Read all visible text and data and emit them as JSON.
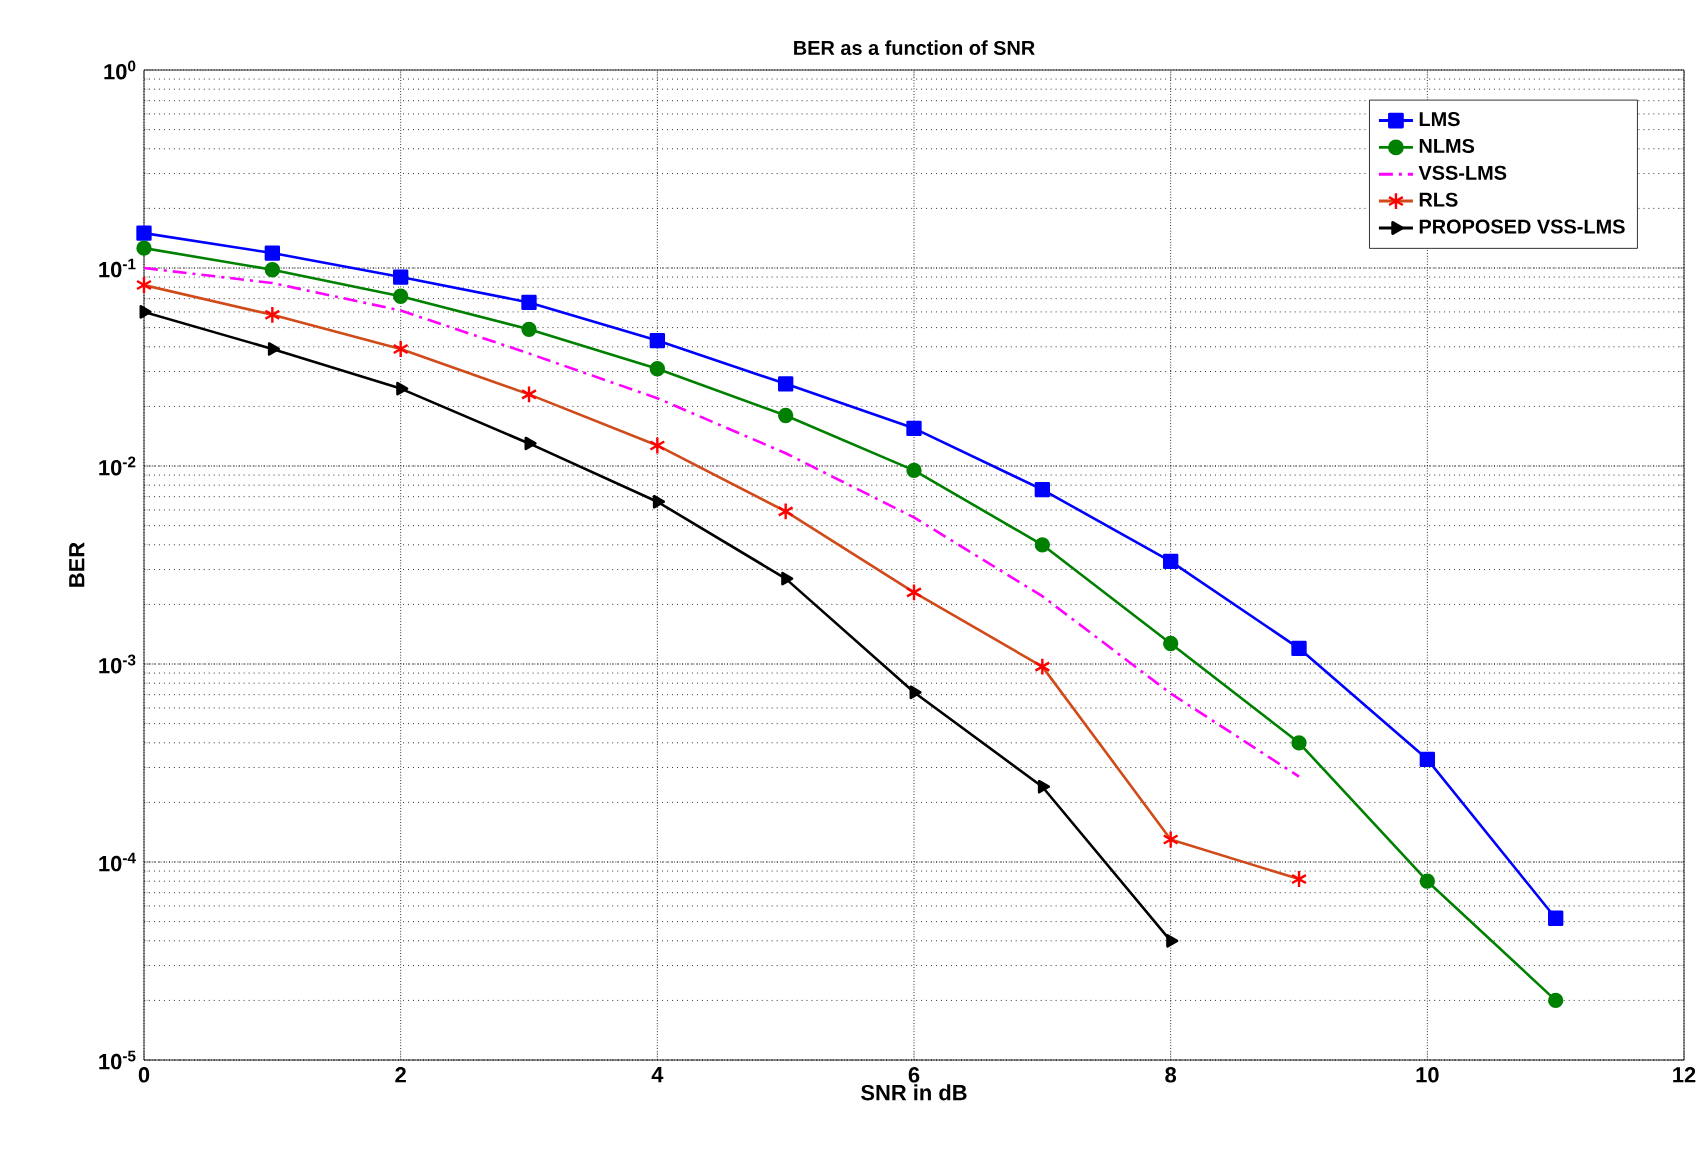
{
  "chart_data": {
    "type": "line",
    "title": "BER as a function of SNR",
    "xlabel": "SNR in dB",
    "ylabel": "BER",
    "x": [
      0,
      1,
      2,
      3,
      4,
      5,
      6,
      7,
      8,
      9,
      10,
      11
    ],
    "series": [
      {
        "name": "LMS",
        "color": "#0000ff",
        "marker": "square",
        "values": [
          0.15,
          0.119,
          0.09,
          0.067,
          0.043,
          0.026,
          0.0155,
          0.0076,
          0.0033,
          0.0012,
          0.00033,
          5.2e-05
        ]
      },
      {
        "name": "NLMS",
        "color": "#008000",
        "marker": "circle",
        "values": [
          0.126,
          0.098,
          0.072,
          0.049,
          0.031,
          0.018,
          0.0095,
          0.004,
          0.00127,
          0.0004,
          8e-05,
          2e-05
        ]
      },
      {
        "name": "VSS-LMS",
        "color": "#ff00ff",
        "marker": "none",
        "line_style": "dashdot",
        "values": [
          0.1,
          0.084,
          0.061,
          0.037,
          0.022,
          0.0116,
          0.0055,
          0.0022,
          0.00071,
          0.00027,
          null,
          null
        ]
      },
      {
        "name": "RLS",
        "color": "#d04a1a",
        "marker": "cross",
        "values": [
          0.082,
          0.058,
          0.039,
          0.023,
          0.0127,
          0.0059,
          0.0023,
          0.00097,
          0.00013,
          8.2e-05,
          null,
          null
        ]
      },
      {
        "name": "PROPOSED VSS-LMS",
        "color": "#000000",
        "marker": "triangle",
        "values": [
          0.06,
          0.039,
          0.0246,
          0.013,
          0.0066,
          0.0027,
          0.00072,
          0.00024,
          4e-05,
          null,
          null,
          null
        ]
      }
    ],
    "log": "y",
    "xlim": [
      0,
      12
    ],
    "ylim": [
      1e-05,
      1
    ],
    "xticks": [
      0,
      2,
      4,
      6,
      8,
      10,
      12
    ],
    "yticks": [
      {
        "value": 1e-05,
        "label": "10$^{-5}$"
      },
      {
        "value": 0.0001,
        "label": "10$^{-4}$"
      },
      {
        "value": 0.001,
        "label": "10$^{-3}$"
      },
      {
        "value": 0.01,
        "label": "10$^{-2}$"
      },
      {
        "value": 0.1,
        "label": "10$^{-1}$"
      },
      {
        "value": 1,
        "label": "10$^{0}$"
      }
    ],
    "grid": true,
    "legend": "top right",
    "line_style": "solid"
  }
}
